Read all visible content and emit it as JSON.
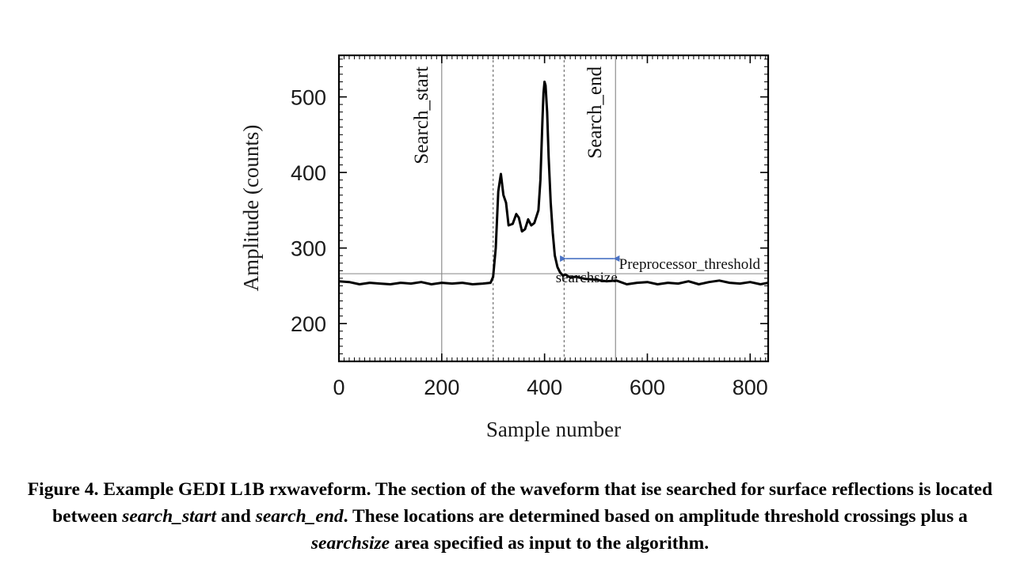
{
  "chart_data": {
    "type": "line",
    "title": "",
    "xlabel": "Sample number",
    "ylabel": "Amplitude (counts)",
    "xlim": [
      0,
      835
    ],
    "ylim": [
      150,
      555
    ],
    "xticks": [
      0,
      200,
      400,
      600,
      800
    ],
    "yticks": [
      200,
      300,
      400,
      500
    ],
    "grid": false,
    "series": [
      {
        "color": "#000000",
        "x": [
          0,
          20,
          40,
          60,
          80,
          100,
          120,
          140,
          160,
          180,
          200,
          220,
          240,
          260,
          280,
          295,
          300,
          305,
          310,
          315,
          320,
          325,
          330,
          338,
          345,
          350,
          356,
          362,
          368,
          374,
          380,
          388,
          392,
          396,
          398,
          400,
          402,
          405,
          408,
          412,
          416,
          420,
          425,
          430,
          436,
          440,
          450,
          460,
          480,
          500,
          520,
          540,
          560,
          580,
          600,
          620,
          640,
          660,
          680,
          700,
          720,
          740,
          760,
          780,
          800,
          820,
          835
        ],
        "y": [
          256,
          255,
          252,
          254,
          253,
          252,
          254,
          253,
          255,
          252,
          254,
          253,
          254,
          252,
          253,
          254,
          262,
          300,
          375,
          398,
          370,
          360,
          330,
          332,
          345,
          340,
          322,
          325,
          338,
          330,
          333,
          350,
          390,
          470,
          505,
          520,
          515,
          480,
          420,
          360,
          320,
          290,
          275,
          268,
          263,
          265,
          261,
          262,
          259,
          258,
          256,
          257,
          252,
          254,
          255,
          252,
          254,
          253,
          256,
          252,
          255,
          257,
          254,
          253,
          255,
          252,
          254
        ]
      }
    ],
    "vertical_lines": [
      {
        "x": 200,
        "style": "solid",
        "label": "Search_start"
      },
      {
        "x": 300,
        "style": "dashed"
      },
      {
        "x": 438,
        "style": "dashed"
      },
      {
        "x": 538,
        "style": "solid",
        "label": "Search_end"
      }
    ],
    "horizontal_lines": [
      {
        "y": 266,
        "style": "solid",
        "label": "Preprocessor_threshold"
      }
    ],
    "annotations": [
      {
        "text": "searchsize",
        "type": "double-arrow",
        "x_range": [
          438,
          538
        ],
        "arrow_y": 286,
        "arrow_color": "#4a72c4"
      }
    ]
  },
  "caption": {
    "prefix": "Figure 4.  Example GEDI L1B rxwaveform. The section of the waveform that ise searched for surface reflections is located between ",
    "term1": "search_start",
    "mid1": " and ",
    "term2": "search_end",
    "mid2": ". These locations are determined based on amplitude threshold crossings plus a ",
    "term3": "searchsize",
    "suffix": " area specified as input to the algorithm."
  }
}
